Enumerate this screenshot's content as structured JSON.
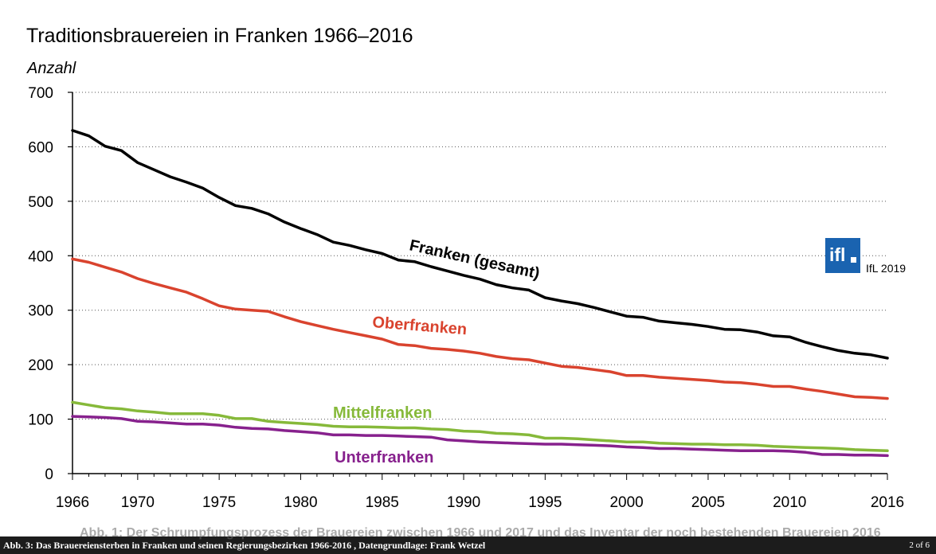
{
  "chart_data": {
    "type": "line",
    "title": "Traditionsbrauereien in Franken 1966–2016",
    "ylabel": "Anzahl",
    "xlabel": "",
    "xlim": [
      1966,
      2016
    ],
    "ylim": [
      0,
      700
    ],
    "xticks": [
      "1966",
      "1970",
      "1975",
      "1980",
      "1985",
      "1990",
      "1995",
      "2000",
      "2005",
      "2010",
      "2016"
    ],
    "yticks": [
      "0",
      "100",
      "200",
      "300",
      "400",
      "500",
      "600",
      "700"
    ],
    "grid": "horizontal dotted",
    "x": [
      1966,
      1967,
      1968,
      1969,
      1970,
      1971,
      1972,
      1973,
      1974,
      1975,
      1976,
      1977,
      1978,
      1979,
      1980,
      1981,
      1982,
      1983,
      1984,
      1985,
      1986,
      1987,
      1988,
      1989,
      1990,
      1991,
      1992,
      1993,
      1994,
      1995,
      1996,
      1997,
      1998,
      1999,
      2000,
      2001,
      2002,
      2003,
      2004,
      2005,
      2006,
      2007,
      2008,
      2009,
      2010,
      2011,
      2012,
      2013,
      2014,
      2015,
      2016
    ],
    "series": [
      {
        "name": "Franken (gesamt)",
        "color": "#000000",
        "values": [
          630,
          620,
          601,
          593,
          571,
          558,
          545,
          535,
          524,
          507,
          492,
          487,
          477,
          462,
          450,
          439,
          425,
          419,
          411,
          404,
          392,
          389,
          380,
          372,
          364,
          357,
          347,
          341,
          337,
          323,
          317,
          312,
          305,
          297,
          289,
          287,
          280,
          277,
          274,
          270,
          265,
          264,
          260,
          253,
          251,
          241,
          233,
          226,
          221,
          218,
          212
        ]
      },
      {
        "name": "Oberfranken",
        "color": "#d9432e",
        "values": [
          394,
          388,
          379,
          370,
          358,
          349,
          341,
          333,
          321,
          308,
          302,
          300,
          298,
          288,
          279,
          272,
          265,
          259,
          253,
          247,
          237,
          235,
          230,
          228,
          225,
          221,
          215,
          211,
          209,
          203,
          197,
          195,
          191,
          187,
          180,
          180,
          177,
          175,
          173,
          171,
          168,
          167,
          164,
          160,
          160,
          155,
          151,
          146,
          141,
          140,
          138
        ]
      },
      {
        "name": "Mittelfranken",
        "color": "#86b93a",
        "values": [
          131,
          126,
          121,
          119,
          115,
          113,
          110,
          110,
          110,
          107,
          101,
          101,
          96,
          94,
          92,
          90,
          87,
          86,
          86,
          85,
          84,
          84,
          82,
          81,
          78,
          77,
          74,
          73,
          71,
          65,
          65,
          64,
          62,
          60,
          58,
          58,
          56,
          55,
          54,
          54,
          53,
          53,
          52,
          50,
          49,
          48,
          47,
          46,
          44,
          43,
          42
        ]
      },
      {
        "name": "Unterfranken",
        "color": "#87218d",
        "values": [
          105,
          104,
          103,
          101,
          96,
          95,
          93,
          91,
          91,
          89,
          85,
          83,
          82,
          79,
          77,
          75,
          71,
          71,
          70,
          70,
          69,
          68,
          67,
          62,
          60,
          58,
          57,
          56,
          55,
          54,
          54,
          53,
          52,
          51,
          49,
          48,
          46,
          46,
          45,
          44,
          43,
          42,
          42,
          42,
          41,
          39,
          35,
          35,
          34,
          34,
          33
        ]
      }
    ]
  },
  "logo": {
    "mark": "ifl",
    "caption": "IfL 2019",
    "color": "#1a63b0"
  },
  "footer": {
    "caption": "Abb. 3: Das Brauereiensterben in Franken und seinen Regierungsbezirken 1966-2016 , Datengrundlage: Frank Wetzel",
    "page": "2 of 6",
    "ghost_text": "Abb. 1: Der Schrumpfungsprozess der Brauereien zwischen 1966 und 2017 und das Inventar der noch bestehenden Brauereien 2016"
  }
}
